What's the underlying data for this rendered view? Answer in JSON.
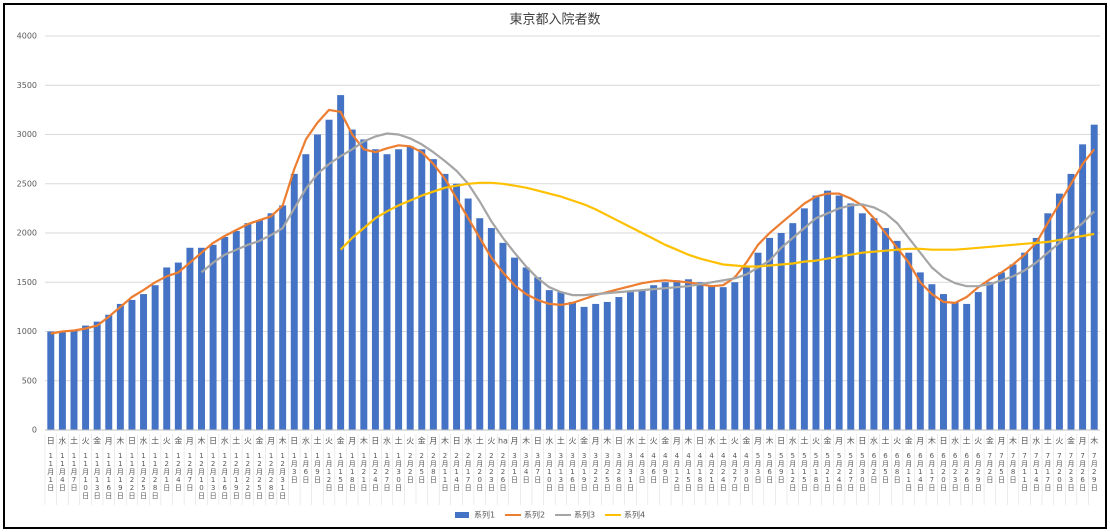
{
  "chart_data": {
    "type": "bar",
    "title": "東京都入院者数",
    "categories": [
      "11月1日",
      "11月4日",
      "11月7日",
      "11月10日",
      "11月13日",
      "11月16日",
      "11月19日",
      "11月22日",
      "11月25日",
      "11月28日",
      "12月1日",
      "12月4日",
      "12月7日",
      "12月10日",
      "12月13日",
      "12月16日",
      "12月19日",
      "12月22日",
      "12月25日",
      "12月28日",
      "12月31日",
      "1月3日",
      "1月6日",
      "1月9日",
      "1月12日",
      "1月15日",
      "1月18日",
      "1月21日",
      "1月24日",
      "1月27日",
      "1月30日",
      "2月2日",
      "2月5日",
      "2月8日",
      "2月11日",
      "2月14日",
      "2月17日",
      "2月20日",
      "2月23日",
      "2月26日",
      "3月1日",
      "3月4日",
      "3月7日",
      "3月10日",
      "3月13日",
      "3月16日",
      "3月19日",
      "3月22日",
      "3月25日",
      "3月28日",
      "3月31日",
      "4月3日",
      "4月6日",
      "4月9日",
      "4月12日",
      "4月15日",
      "4月18日",
      "4月21日",
      "4月24日",
      "4月27日",
      "4月30日",
      "5月3日",
      "5月6日",
      "5月9日",
      "5月12日",
      "5月15日",
      "5月18日",
      "5月21日",
      "5月24日",
      "5月27日",
      "5月30日",
      "6月2日",
      "6月5日",
      "6月8日",
      "6月11日",
      "6月14日",
      "6月17日",
      "6月20日",
      "6月23日",
      "6月26日",
      "6月29日",
      "7月2日",
      "7月5日",
      "7月8日",
      "7月11日",
      "7月14日",
      "7月17日",
      "7月20日",
      "7月23日",
      "7月26日",
      "7月29日"
    ],
    "weekdays": [
      "日",
      "水",
      "土",
      "火",
      "金",
      "月",
      "木",
      "日",
      "水",
      "土",
      "火",
      "金",
      "月",
      "木",
      "日",
      "水",
      "土",
      "火",
      "金",
      "月",
      "木",
      "日",
      "水",
      "土",
      "火",
      "金",
      "月",
      "木",
      "日",
      "水",
      "土",
      "火",
      "金",
      "月",
      "木",
      "日",
      "水",
      "土",
      "火",
      "ha",
      "月",
      "木",
      "日",
      "水",
      "土",
      "火",
      "金",
      "月",
      "木",
      "日",
      "水",
      "土",
      "火",
      "金",
      "月",
      "木",
      "日",
      "水",
      "土",
      "火",
      "金",
      "月",
      "木",
      "日",
      "水",
      "土",
      "火",
      "金",
      "月",
      "木",
      "日",
      "水",
      "土",
      "火",
      "金",
      "月",
      "木",
      "日",
      "水",
      "土",
      "火",
      "金",
      "月",
      "木",
      "日",
      "水",
      "土",
      "火",
      "金",
      "月",
      "木"
    ],
    "series": [
      {
        "name": "系列1",
        "type": "bar",
        "color": "#4472c4",
        "values": [
          1000,
          990,
          1010,
          1060,
          1100,
          1170,
          1280,
          1320,
          1380,
          1470,
          1650,
          1700,
          1850,
          1850,
          1880,
          1960,
          2020,
          2100,
          2130,
          2200,
          2280,
          2600,
          2800,
          3000,
          3150,
          3400,
          3050,
          2950,
          2850,
          2800,
          2850,
          2880,
          2850,
          2750,
          2600,
          2500,
          2350,
          2150,
          2050,
          1900,
          1750,
          1650,
          1550,
          1420,
          1400,
          1300,
          1250,
          1280,
          1300,
          1350,
          1400,
          1420,
          1470,
          1500,
          1520,
          1530,
          1500,
          1470,
          1450,
          1500,
          1650,
          1800,
          1950,
          2000,
          2100,
          2250,
          2380,
          2430,
          2380,
          2300,
          2200,
          2150,
          2050,
          1920,
          1800,
          1600,
          1480,
          1380,
          1300,
          1280,
          1400,
          1500,
          1600,
          1680,
          1800,
          1950,
          2200,
          2400,
          2600,
          2900,
          3100
        ]
      },
      {
        "name": "系列2",
        "type": "line",
        "color": "#ed7d31",
        "values": [
          980,
          1000,
          1010,
          1030,
          1060,
          1150,
          1250,
          1350,
          1420,
          1500,
          1560,
          1600,
          1700,
          1800,
          1900,
          1970,
          2030,
          2090,
          2130,
          2170,
          2280,
          2650,
          2950,
          3120,
          3250,
          3230,
          3000,
          2850,
          2820,
          2860,
          2890,
          2880,
          2820,
          2700,
          2550,
          2350,
          2150,
          1950,
          1750,
          1600,
          1470,
          1380,
          1320,
          1280,
          1270,
          1290,
          1330,
          1370,
          1400,
          1430,
          1460,
          1490,
          1510,
          1520,
          1510,
          1500,
          1480,
          1460,
          1470,
          1550,
          1700,
          1880,
          2000,
          2100,
          2200,
          2300,
          2370,
          2400,
          2400,
          2350,
          2280,
          2150,
          2000,
          1850,
          1700,
          1500,
          1380,
          1300,
          1290,
          1350,
          1450,
          1530,
          1600,
          1680,
          1780,
          1900,
          2100,
          2300,
          2500,
          2700,
          2850
        ]
      },
      {
        "name": "系列3",
        "type": "line",
        "color": "#a5a5a5",
        "values": [
          null,
          null,
          null,
          null,
          null,
          null,
          null,
          null,
          null,
          null,
          null,
          null,
          null,
          1600,
          1700,
          1780,
          1830,
          1880,
          1920,
          1980,
          2050,
          2250,
          2450,
          2600,
          2700,
          2780,
          2850,
          2930,
          2980,
          3010,
          3000,
          2960,
          2900,
          2820,
          2730,
          2630,
          2500,
          2320,
          2120,
          1950,
          1800,
          1660,
          1540,
          1450,
          1400,
          1370,
          1370,
          1380,
          1390,
          1400,
          1410,
          1420,
          1430,
          1440,
          1450,
          1460,
          1480,
          1500,
          1520,
          1540,
          1580,
          1650,
          1720,
          1850,
          1950,
          2050,
          2150,
          2200,
          2250,
          2280,
          2290,
          2260,
          2200,
          2100,
          1950,
          1800,
          1650,
          1550,
          1490,
          1460,
          1460,
          1480,
          1520,
          1560,
          1620,
          1700,
          1800,
          1900,
          2000,
          2100,
          2220
        ]
      },
      {
        "name": "系列4",
        "type": "line",
        "color": "#ffc000",
        "values": [
          null,
          null,
          null,
          null,
          null,
          null,
          null,
          null,
          null,
          null,
          null,
          null,
          null,
          null,
          null,
          null,
          null,
          null,
          null,
          null,
          null,
          null,
          null,
          null,
          null,
          1830,
          1950,
          2050,
          2150,
          2220,
          2280,
          2330,
          2380,
          2420,
          2460,
          2480,
          2500,
          2510,
          2510,
          2500,
          2480,
          2460,
          2430,
          2400,
          2370,
          2330,
          2290,
          2240,
          2180,
          2120,
          2060,
          2000,
          1940,
          1880,
          1830,
          1780,
          1740,
          1710,
          1680,
          1670,
          1660,
          1660,
          1670,
          1680,
          1690,
          1710,
          1720,
          1740,
          1760,
          1780,
          1800,
          1810,
          1820,
          1830,
          1840,
          1840,
          1830,
          1830,
          1830,
          1840,
          1850,
          1860,
          1870,
          1880,
          1890,
          1900,
          1910,
          1930,
          1950,
          1970,
          1990
        ]
      }
    ],
    "ylim": [
      0,
      4000
    ],
    "yticks": [
      0,
      500,
      1000,
      1500,
      2000,
      2500,
      3000,
      3500,
      4000
    ],
    "grid": true,
    "legend": "bottom"
  }
}
